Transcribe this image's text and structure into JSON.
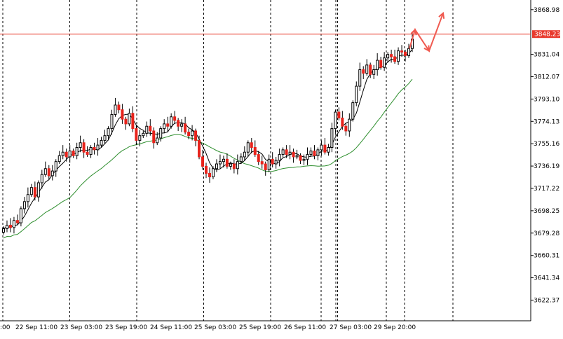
{
  "chart_data": {
    "type": "candlestick",
    "y_ticks": [
      "3868.98",
      "3831.04",
      "3812.07",
      "3793.10",
      "3774.13",
      "3755.16",
      "3736.19",
      "3717.22",
      "3698.25",
      "3679.28",
      "3660.31",
      "3641.34",
      "3622.37"
    ],
    "y_tick_values": [
      3868.98,
      3831.04,
      3812.07,
      3793.1,
      3774.13,
      3755.16,
      3736.19,
      3717.22,
      3698.25,
      3679.28,
      3660.31,
      3641.34,
      3622.37
    ],
    "ylim": [
      3606,
      3876
    ],
    "x_ticks": [
      "22 Sep 11:00",
      "23 Sep 03:00",
      "23 Sep 19:00",
      "24 Sep 11:00",
      "25 Sep 03:00",
      "25 Sep 19:00",
      "26 Sep 11:00",
      "27 Sep 03:00",
      "29 Sep 20:00"
    ],
    "x_tick_first_partial": ":00",
    "horizontal_line": {
      "value": 3848.23,
      "label": "3848.23",
      "color": "#e83a2d"
    },
    "separator_sessions": 11,
    "colors": {
      "bull": "#ffffff",
      "bear": "#e8221b",
      "wick": "#000000",
      "ma_fast": "#000000",
      "ma_slow": "#2f8f2f",
      "arrow": "#f05a50",
      "grid": "#000000"
    },
    "candle_closes": [
      3683,
      3686,
      3684,
      3690,
      3688,
      3700,
      3706,
      3712,
      3718,
      3710,
      3722,
      3729,
      3734,
      3728,
      3732,
      3740,
      3745,
      3748,
      3744,
      3749,
      3745,
      3752,
      3756,
      3748,
      3746,
      3752,
      3750,
      3754,
      3758,
      3762,
      3768,
      3780,
      3788,
      3784,
      3776,
      3772,
      3781,
      3768,
      3758,
      3762,
      3764,
      3770,
      3766,
      3756,
      3760,
      3768,
      3772,
      3770,
      3778,
      3775,
      3770,
      3772,
      3765,
      3762,
      3766,
      3758,
      3744,
      3736,
      3730,
      3727,
      3734,
      3738,
      3740,
      3742,
      3736,
      3738,
      3734,
      3740,
      3744,
      3748,
      3756,
      3752,
      3746,
      3740,
      3738,
      3733,
      3742,
      3738,
      3741,
      3746,
      3750,
      3746,
      3748,
      3744,
      3745,
      3741,
      3742,
      3746,
      3749,
      3745,
      3750,
      3754,
      3748,
      3752,
      3768,
      3782,
      3777,
      3770,
      3766,
      3776,
      3790,
      3804,
      3818,
      3815,
      3822,
      3814,
      3818,
      3826,
      3820,
      3828,
      3831,
      3829,
      3825,
      3834,
      3833,
      3830,
      3836,
      3844
    ],
    "arrow_path_values": [
      3836,
      3852,
      3834,
      3866
    ]
  }
}
